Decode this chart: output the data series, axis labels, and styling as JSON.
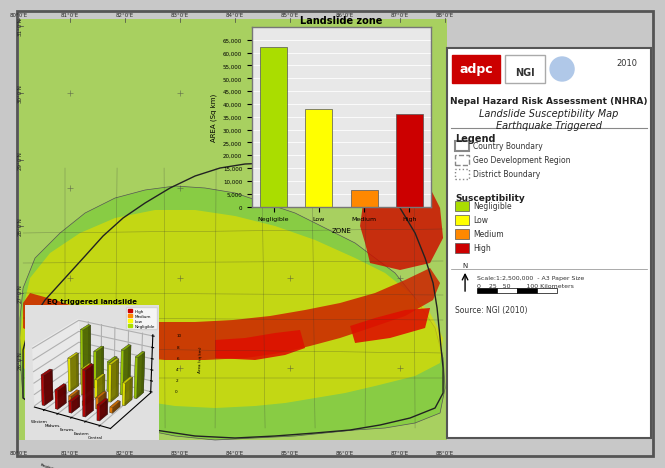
{
  "title": "Nepal Hazard Risk Assessment (NHRA)\nLandslide Susceptibility Map\nEarthquake Triggered",
  "bg_color": "#d4e8d4",
  "frame_color": "#888888",
  "map_bg": "#7ec850",
  "susceptibility_colors": {
    "Negligible": "#aadd00",
    "Low": "#ffff00",
    "Medium": "#ff8800",
    "High": "#cc0000"
  },
  "bar_chart": {
    "title": "Landslide zone",
    "categories": [
      "Negligible",
      "Low",
      "Medium",
      "High"
    ],
    "values": [
      62000,
      38000,
      6500,
      36000
    ],
    "colors": [
      "#aadd00",
      "#ffff00",
      "#ff8800",
      "#cc0000"
    ],
    "ylabel": "AREA (Sq km)",
    "xlabel": "ZONE",
    "bg_color": "#e8e8e8",
    "ylim": [
      0,
      70000
    ],
    "yticks": [
      0,
      5000,
      10000,
      15000,
      20000,
      25000,
      30000,
      35000,
      40000,
      45000,
      50000,
      55000,
      60000,
      65000
    ]
  },
  "inset_3d": {
    "title": "EQ triggered landslide",
    "legend": [
      "High",
      "Medium",
      "Low",
      "Negligible"
    ],
    "legend_colors": [
      "#cc0000",
      "#ff8800",
      "#ffff00",
      "#aadd00"
    ],
    "regions": [
      "Western",
      "Midwes.",
      "Farwes.",
      "Eastern",
      "Central"
    ],
    "ylabel": "Area (sq km)"
  },
  "legend": {
    "title": "Legend",
    "boundary_items": [
      "Country Boundary",
      "Geo Development Region",
      "District Boundary"
    ],
    "susceptibility_title": "Susceptibility",
    "susceptibility_items": [
      "Negligible",
      "Low",
      "Medium",
      "High"
    ],
    "susceptibility_colors": [
      "#aadd00",
      "#ffff00",
      "#ff8800",
      "#cc0000"
    ]
  },
  "scale_text": "Scale:1:2,500,000  - A3 Paper Size\n0    25   50        100 Kilometers",
  "source_text": "Source: NGI (2010)",
  "logo_text": "adpc",
  "ngi_text": "NGI",
  "year_text": "2010",
  "lat_ticks": [
    "31°0'N",
    "30°0'N",
    "29°0'N",
    "28°0'N",
    "27°0'N",
    "26°0'N"
  ],
  "lon_ticks": [
    "80°0'E",
    "81°0'E",
    "82°0'E",
    "83°0'E",
    "84°0'E",
    "85°0'E",
    "86°0'E",
    "87°0'E",
    "88°0'E"
  ],
  "outer_bg": "#c8c8c8",
  "map_panel_color": "#b0c8e8"
}
